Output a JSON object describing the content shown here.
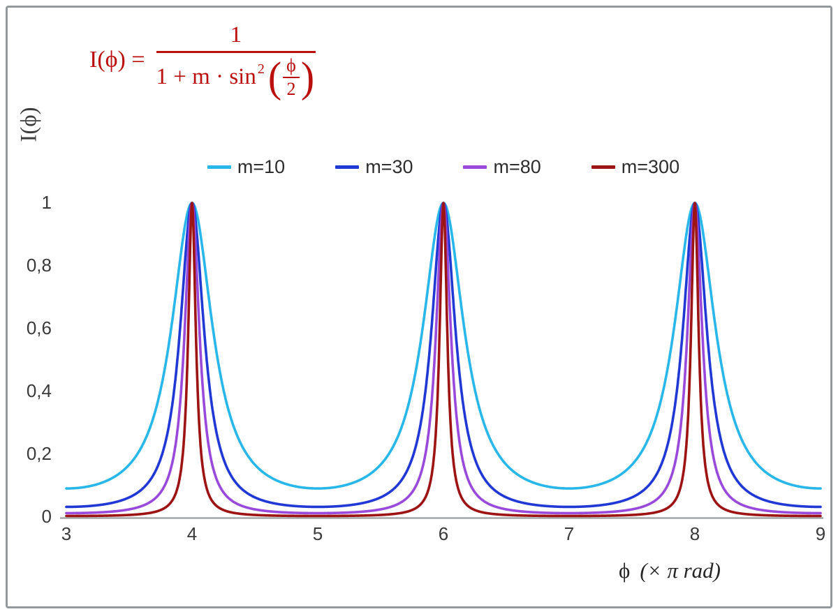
{
  "formula": {
    "lhs": "I(ϕ) =",
    "numerator": "1",
    "den_text": "1 + m · sin",
    "den_sup": "2",
    "inner_numerator": "ϕ",
    "inner_denominator": "2",
    "color": "#bb0f0e"
  },
  "axes": {
    "y_axis_title": "I(ϕ)",
    "x_axis_title_symbol": "ϕ",
    "x_axis_title_unit": "(× π rad)",
    "x_tick_labels": [
      "3",
      "4",
      "5",
      "6",
      "7",
      "8",
      "9"
    ],
    "y_tick_labels": [
      "0",
      "0,2",
      "0,4",
      "0,6",
      "0,8",
      "1"
    ],
    "axis_color": "#a3a6a8",
    "tick_label_color": "#3a3a3a"
  },
  "legend": {
    "items": [
      {
        "label": "m=10",
        "color": "#29b6e8"
      },
      {
        "label": "m=30",
        "color": "#2139d4"
      },
      {
        "label": "m=80",
        "color": "#9a4ada"
      },
      {
        "label": "m=300",
        "color": "#9c1413"
      }
    ]
  },
  "chart_data": {
    "type": "line",
    "title": "",
    "formula": "I(phi) = 1 / (1 + m * sin^2(phi/2))",
    "xlabel": "ϕ (× π rad)",
    "ylabel": "I(ϕ)",
    "x_unit": "pi rad",
    "xlim": [
      3,
      9
    ],
    "ylim": [
      0,
      1
    ],
    "x_ticks": [
      3,
      4,
      5,
      6,
      7,
      8,
      9
    ],
    "y_ticks": [
      0,
      0.2,
      0.4,
      0.6,
      0.8,
      1
    ],
    "grid": false,
    "legend_position": "top",
    "series": [
      {
        "name": "m=10",
        "m": 10,
        "color": "#29b6e8",
        "peak_value": 1,
        "min_value": 0.0909
      },
      {
        "name": "m=30",
        "m": 30,
        "color": "#2139d4",
        "peak_value": 1,
        "min_value": 0.0323
      },
      {
        "name": "m=80",
        "m": 80,
        "color": "#9a4ada",
        "peak_value": 1,
        "min_value": 0.0123
      },
      {
        "name": "m=300",
        "m": 300,
        "color": "#9c1413",
        "peak_value": 1,
        "min_value": 0.0033
      }
    ],
    "peaks_at_x": [
      4,
      6,
      8
    ],
    "minima_at_x": [
      3,
      5,
      7,
      9
    ],
    "sampling": {
      "x_start": 3,
      "x_end": 9,
      "points": 2400
    }
  }
}
